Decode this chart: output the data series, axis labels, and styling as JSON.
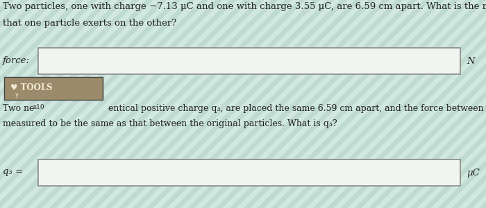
{
  "title_line1": "Two particles, one with charge −7.13 μC and one with charge 3.55 μC, are 6.59 cm apart. What is the magnitude of the force",
  "title_line2": "that one particle exerts on the other?",
  "force_label": "force:",
  "force_unit": "N",
  "tools_label": "♥ TOOLS",
  "tools_subtext_small": "y",
  "tools_subtext": "x10",
  "second_line_a": "Two ne",
  "second_line_b": "entical positive charge q₃, are placed the same 6.59 cm apart, and the force between them is",
  "second_line3": "measured to be the same as that between the original particles. What is q₃?",
  "q3_label": "q₃ =",
  "q3_unit": "μC",
  "bg_color_light": "#cde8e0",
  "bg_color_stripe": "#b8d8d0",
  "box_bg": "#f0f5f0",
  "box_edge": "#888888",
  "tools_bg": "#9B8B6B",
  "tools_border": "#444444",
  "tools_text_color": "#f0e8d0",
  "text_color": "#222222",
  "title_fontsize": 9.5,
  "body_fontsize": 9.0,
  "label_fontsize": 9.5
}
